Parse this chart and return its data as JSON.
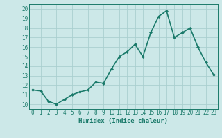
{
  "x": [
    0,
    1,
    2,
    3,
    4,
    5,
    6,
    7,
    8,
    9,
    10,
    11,
    12,
    13,
    14,
    15,
    16,
    17,
    18,
    19,
    20,
    21,
    22,
    23
  ],
  "y": [
    11.5,
    11.4,
    10.3,
    10.0,
    10.5,
    11.0,
    11.3,
    11.5,
    12.3,
    12.2,
    13.7,
    15.0,
    15.5,
    16.3,
    15.0,
    17.5,
    19.2,
    19.8,
    17.0,
    17.5,
    18.0,
    16.0,
    14.4,
    13.1
  ],
  "line_color": "#1a7a6a",
  "marker": "D",
  "marker_size": 2.0,
  "bg_color": "#cce8e8",
  "grid_color": "#aacfcf",
  "xlabel": "Humidex (Indice chaleur)",
  "xlim": [
    -0.5,
    23.5
  ],
  "ylim": [
    9.5,
    20.5
  ],
  "yticks": [
    10,
    11,
    12,
    13,
    14,
    15,
    16,
    17,
    18,
    19,
    20
  ],
  "xticks": [
    0,
    1,
    2,
    3,
    4,
    5,
    6,
    7,
    8,
    9,
    10,
    11,
    12,
    13,
    14,
    15,
    16,
    17,
    18,
    19,
    20,
    21,
    22,
    23
  ],
  "tick_fontsize": 5.5,
  "label_fontsize": 6.5,
  "linewidth": 1.2
}
